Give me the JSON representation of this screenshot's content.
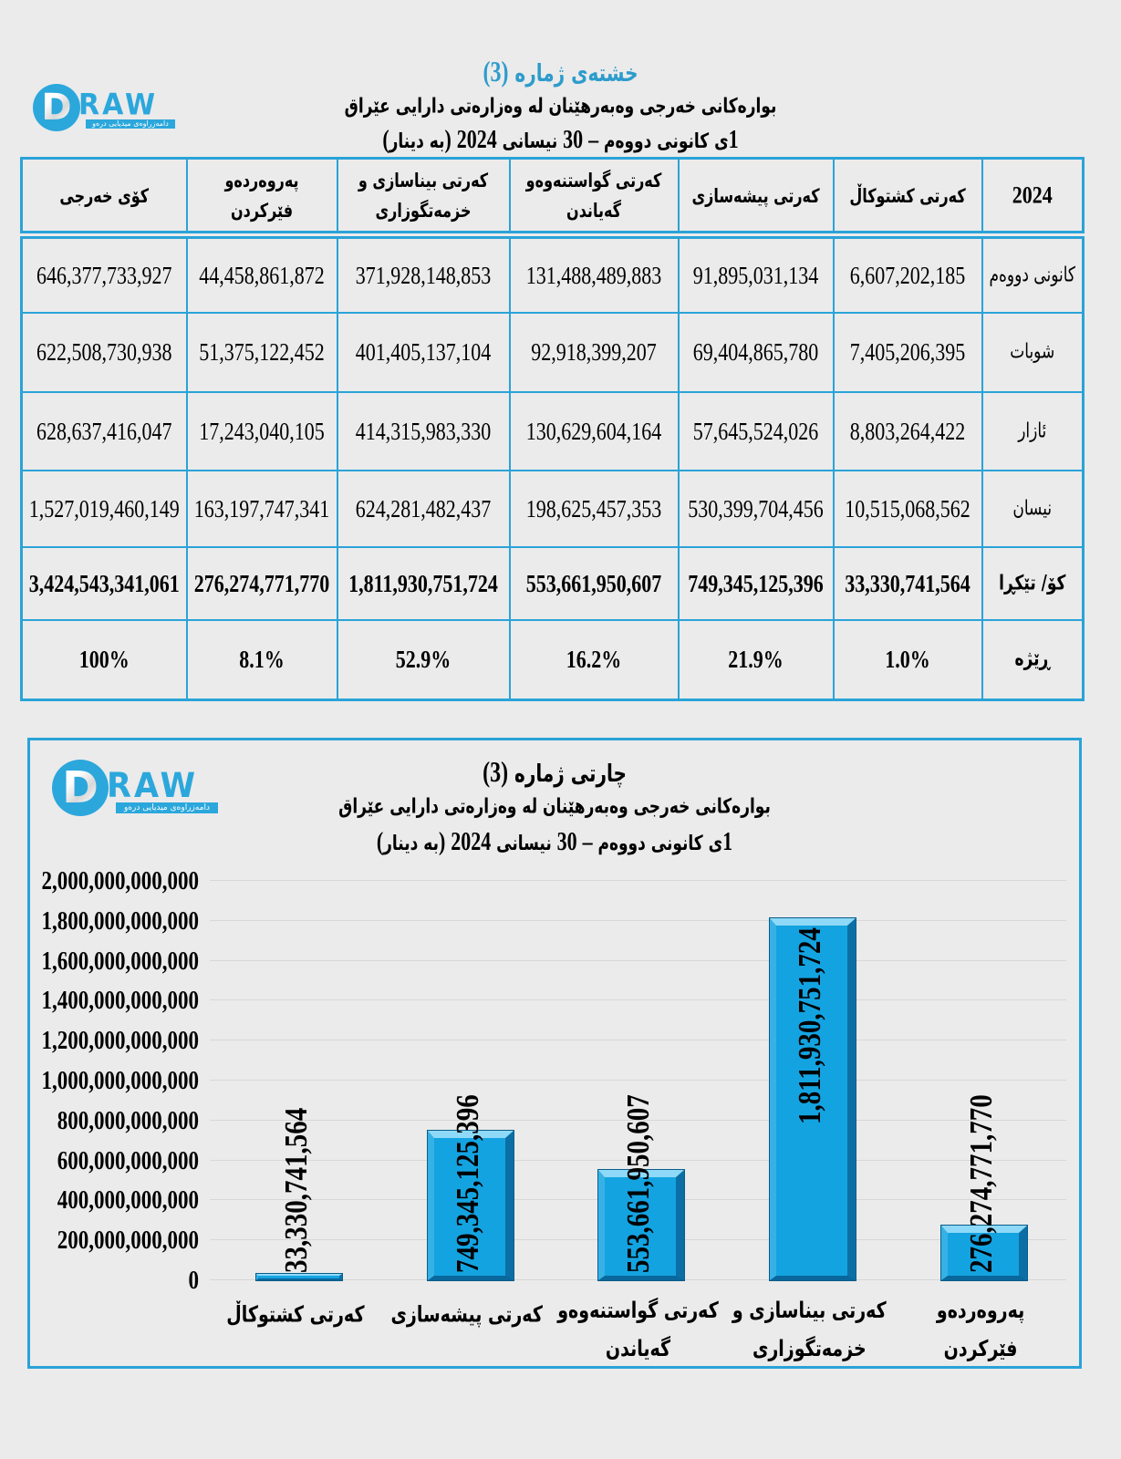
{
  "page": {
    "background": "#ebebeb",
    "accent": "#2aa3d8",
    "title_blue": "#2d9ccc",
    "bar_color": "#14a3e1"
  },
  "logo": {
    "d": "D",
    "raw": "RAW",
    "tagline": "دامەزراوەی میدیایی درەو"
  },
  "table_section": {
    "title_line1": "خشتەی ژمارە (3)",
    "title_line2": "بوارەکانی خەرجی وەبەرهێنان لە وەزارەتی دارایی عێراق",
    "title_line3": "1ی کانونی دووەم – 30 نیسانی 2024 (بە دینار)",
    "table": {
      "year_header": "2024",
      "columns": [
        "کەرتی کشتوکاڵ",
        "کەرتی پیشەسازی",
        "کەرتی گواستنەوەو گەیاندن",
        "کەرتی بیناسازی و خزمەتگوزاری",
        "پەروەردەو فێرکردن",
        "کۆی خەرجی"
      ],
      "rows": [
        {
          "label": "کانونی دووەم",
          "bold": false,
          "values": [
            "6,607,202,185",
            "91,895,031,134",
            "131,488,489,883",
            "371,928,148,853",
            "44,458,861,872",
            "646,377,733,927"
          ]
        },
        {
          "label": "شوبات",
          "bold": false,
          "values": [
            "7,405,206,395",
            "69,404,865,780",
            "92,918,399,207",
            "401,405,137,104",
            "51,375,122,452",
            "622,508,730,938"
          ]
        },
        {
          "label": "ئازار",
          "bold": false,
          "values": [
            "8,803,264,422",
            "57,645,524,026",
            "130,629,604,164",
            "414,315,983,330",
            "17,243,040,105",
            "628,637,416,047"
          ]
        },
        {
          "label": "نیسان",
          "bold": false,
          "values": [
            "10,515,068,562",
            "530,399,704,456",
            "198,625,457,353",
            "624,281,482,437",
            "163,197,747,341",
            "1,527,019,460,149"
          ]
        },
        {
          "label": "کۆ/ تێکڕا",
          "bold": true,
          "values": [
            "33,330,741,564",
            "749,345,125,396",
            "553,661,950,607",
            "1,811,930,751,724",
            "276,274,771,770",
            "3,424,543,341,061"
          ]
        },
        {
          "label": "ڕێژە",
          "bold": true,
          "values": [
            "1.0%",
            "21.9%",
            "16.2%",
            "52.9%",
            "8.1%",
            "100%"
          ]
        }
      ]
    }
  },
  "chart_section": {
    "title_line1": "چارتی ژمارە (3)",
    "title_line2": "بوارەکانی خەرجی وەبەرهێنان لە وەزارەتی دارایی عێراق",
    "title_line3": "1ی کانونی دووەم – 30 نیسانی 2024 (بە دینار)"
  },
  "chart_data": {
    "type": "bar",
    "title": "چارتی ژمارە (3)",
    "subtitle": "بوارەکانی خەرجی وەبەرهێنان لە وەزارەتی دارایی عێراق — 1ی کانونی دووەم – 30 نیسانی 2024 (بە دینار)",
    "categories": [
      "کەرتی کشتوکاڵ",
      "کەرتی پیشەسازی",
      "کەرتی گواستنەوەو گەیاندن",
      "کەرتی بیناسازی و خزمەتگوزاری",
      "پەروەردەو فێرکردن"
    ],
    "xtick_lines": [
      [
        "کەرتی کشتوکاڵ"
      ],
      [
        "کەرتی پیشەسازی"
      ],
      [
        "کەرتی گواستنەوەو",
        "گەیاندن"
      ],
      [
        "کەرتی بیناسازی و",
        "خزمەتگوزاری"
      ],
      [
        "پەروەردەو",
        "فێرکردن"
      ]
    ],
    "values": [
      33330741564,
      749345125396,
      553661950607,
      1811930751724,
      276274771770
    ],
    "data_labels": [
      "33,330,741,564",
      "749,345,125,396",
      "553,661,950,607",
      "1,811,930,751,724",
      "276,274,771,770"
    ],
    "ylim": [
      0,
      2000000000000
    ],
    "ytick_step": 200000000000,
    "yticks": [
      "0",
      "200,000,000,000",
      "400,000,000,000",
      "600,000,000,000",
      "800,000,000,000",
      "1,000,000,000,000",
      "1,200,000,000,000",
      "1,400,000,000,000",
      "1,600,000,000,000",
      "1,800,000,000,000",
      "2,000,000,000,000"
    ],
    "grid": true,
    "legend": false,
    "bar_color": "#14a3e1"
  }
}
